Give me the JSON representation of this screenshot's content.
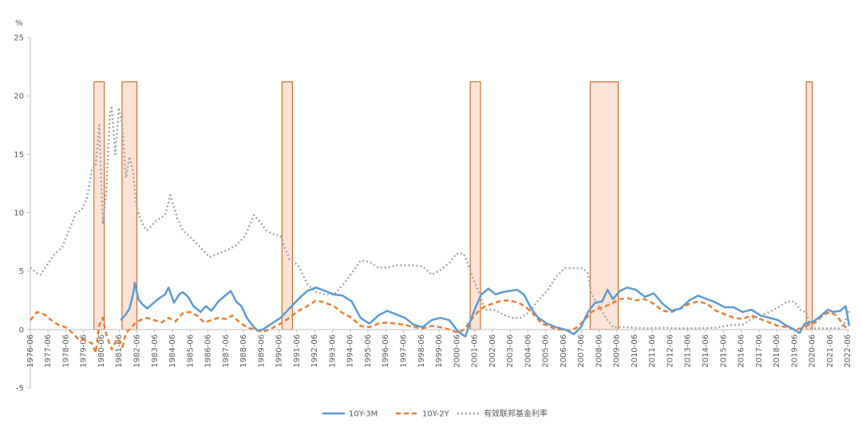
{
  "chart_data": {
    "type": "line",
    "ylabel": "%",
    "ylim": [
      -5,
      25
    ],
    "yticks": [
      "-5",
      "0",
      "5",
      "10",
      "15",
      "20",
      "25"
    ],
    "xlim": [
      1976.42,
      2022.5
    ],
    "x_tick_labels": [
      "1976-06",
      "1977-06",
      "1978-06",
      "1979-06",
      "1980-06",
      "1981-06",
      "1982-06",
      "1983-06",
      "1984-06",
      "1985-06",
      "1986-06",
      "1987-06",
      "1988-06",
      "1989-06",
      "1990-06",
      "1991-06",
      "1992-06",
      "1993-06",
      "1994-06",
      "1995-06",
      "1996-06",
      "1997-06",
      "1998-06",
      "1999-06",
      "2000-06",
      "2001-06",
      "2002-06",
      "2003-06",
      "2004-06",
      "2005-06",
      "2006-06",
      "2007-06",
      "2008-06",
      "2009-06",
      "2010-06",
      "2011-06",
      "2012-06",
      "2013-06",
      "2014-06",
      "2015-06",
      "2016-06",
      "2017-06",
      "2018-06",
      "2019-06",
      "2020-06",
      "2021-06",
      "2022-06"
    ],
    "recessions": [
      [
        1980.0,
        1980.58
      ],
      [
        1981.58,
        1982.42
      ],
      [
        1990.58,
        1991.17
      ],
      [
        2001.17,
        2001.75
      ],
      [
        2007.92,
        2009.5
      ],
      [
        2020.08,
        2020.42
      ]
    ],
    "recession_height": 21.2,
    "colors": {
      "s10y3m": "#5b9bd5",
      "s10y2y": "#ed7d31",
      "fed": "#a5a5a5",
      "recession_fill": "#fbe3d6",
      "recession_stroke": "#c55a11"
    },
    "legend": {
      "position": "bottom",
      "entries": [
        "10Y-3M",
        "10Y-2Y",
        "有效联邦基金利率"
      ]
    },
    "series": [
      {
        "name": "10Y-3M",
        "style": "solid",
        "x": [
          1981.5,
          1981.8,
          1982.0,
          1982.2,
          1982.3,
          1982.5,
          1982.7,
          1983.0,
          1983.3,
          1983.6,
          1984.0,
          1984.2,
          1984.5,
          1984.8,
          1985.0,
          1985.3,
          1985.6,
          1986.0,
          1986.3,
          1986.6,
          1987.0,
          1987.3,
          1987.7,
          1988.0,
          1988.3,
          1988.6,
          1989.0,
          1989.2,
          1989.5,
          1989.8,
          1990.0,
          1990.5,
          1991.0,
          1991.5,
          1992.0,
          1992.5,
          1993.0,
          1993.5,
          1994.0,
          1994.5,
          1995.0,
          1995.5,
          1996.0,
          1996.5,
          1997.0,
          1997.5,
          1998.0,
          1998.5,
          1999.0,
          1999.5,
          2000.0,
          2000.5,
          2000.9,
          2001.2,
          2001.5,
          2001.8,
          2002.2,
          2002.6,
          2003.0,
          2003.4,
          2003.8,
          2004.2,
          2004.6,
          2005.0,
          2005.5,
          2006.0,
          2006.5,
          2007.0,
          2007.4,
          2007.8,
          2008.2,
          2008.6,
          2008.9,
          2009.2,
          2009.6,
          2010.0,
          2010.5,
          2011.0,
          2011.5,
          2012.0,
          2012.5,
          2013.0,
          2013.5,
          2014.0,
          2014.5,
          2015.0,
          2015.5,
          2016.0,
          2016.5,
          2017.0,
          2017.5,
          2018.0,
          2018.5,
          2019.0,
          2019.4,
          2019.7,
          2020.0,
          2020.3,
          2020.6,
          2021.0,
          2021.3,
          2021.6,
          2022.0,
          2022.3,
          2022.5
        ],
        "y": [
          0.8,
          1.3,
          1.8,
          3.0,
          4.0,
          2.6,
          2.2,
          1.8,
          2.2,
          2.6,
          3.0,
          3.6,
          2.3,
          3.0,
          3.2,
          2.8,
          2.0,
          1.5,
          2.0,
          1.6,
          2.4,
          2.8,
          3.3,
          2.4,
          2.0,
          1.0,
          0.2,
          -0.1,
          0.0,
          0.3,
          0.5,
          1.0,
          1.8,
          2.6,
          3.3,
          3.6,
          3.3,
          3.0,
          2.9,
          2.4,
          1.0,
          0.5,
          1.2,
          1.6,
          1.3,
          1.0,
          0.4,
          0.2,
          0.8,
          1.0,
          0.8,
          -0.2,
          -0.6,
          0.8,
          2.0,
          3.0,
          3.5,
          3.0,
          3.2,
          3.3,
          3.4,
          3.0,
          1.8,
          1.0,
          0.5,
          0.2,
          0.0,
          -0.4,
          0.2,
          1.5,
          2.3,
          2.4,
          3.4,
          2.6,
          3.3,
          3.6,
          3.4,
          2.8,
          3.1,
          2.2,
          1.6,
          1.8,
          2.5,
          2.9,
          2.6,
          2.3,
          1.9,
          1.9,
          1.5,
          1.7,
          1.2,
          1.0,
          0.8,
          0.3,
          0.0,
          -0.3,
          0.5,
          0.6,
          0.8,
          1.3,
          1.7,
          1.5,
          1.6,
          2.0,
          0.3
        ]
      },
      {
        "name": "10Y-2Y",
        "style": "dashed",
        "x": [
          1976.42,
          1976.8,
          1977.2,
          1977.6,
          1978.0,
          1978.4,
          1978.8,
          1979.1,
          1979.5,
          1979.9,
          1980.1,
          1980.3,
          1980.5,
          1980.7,
          1981.0,
          1981.3,
          1981.6,
          1981.8,
          1982.0,
          1982.3,
          1982.6,
          1983.0,
          1983.4,
          1983.8,
          1984.2,
          1984.6,
          1985.0,
          1985.4,
          1985.8,
          1986.2,
          1986.6,
          1987.0,
          1987.4,
          1987.8,
          1988.2,
          1988.6,
          1989.0,
          1989.5,
          1990.0,
          1990.5,
          1991.0,
          1991.5,
          1992.0,
          1992.5,
          1993.0,
          1993.5,
          1994.0,
          1994.5,
          1995.0,
          1995.5,
          1996.0,
          1996.5,
          1997.0,
          1997.5,
          1998.0,
          1998.5,
          1999.0,
          1999.5,
          2000.0,
          2000.5,
          2000.9,
          2001.2,
          2001.6,
          2002.0,
          2002.4,
          2002.8,
          2003.2,
          2003.6,
          2004.0,
          2004.4,
          2004.8,
          2005.2,
          2005.6,
          2006.0,
          2006.4,
          2006.8,
          2007.2,
          2007.6,
          2008.0,
          2008.4,
          2008.8,
          2009.2,
          2009.6,
          2010.0,
          2010.5,
          2011.0,
          2011.5,
          2012.0,
          2012.5,
          2013.0,
          2013.5,
          2014.0,
          2014.5,
          2015.0,
          2015.5,
          2016.0,
          2016.5,
          2017.0,
          2017.5,
          2018.0,
          2018.5,
          2019.0,
          2019.4,
          2019.8,
          2020.2,
          2020.6,
          2021.0,
          2021.4,
          2021.8,
          2022.1,
          2022.4
        ],
        "y": [
          0.8,
          1.5,
          1.3,
          0.8,
          0.4,
          0.2,
          -0.3,
          -0.8,
          -0.9,
          -1.2,
          -2.0,
          0.4,
          1.0,
          -0.5,
          -1.7,
          -0.8,
          -1.5,
          -0.3,
          0.0,
          0.5,
          0.8,
          1.0,
          0.8,
          0.6,
          1.0,
          0.7,
          1.4,
          1.5,
          1.2,
          0.6,
          0.8,
          1.0,
          0.9,
          1.2,
          0.6,
          0.2,
          0.0,
          -0.2,
          0.1,
          0.5,
          1.0,
          1.6,
          2.0,
          2.5,
          2.3,
          2.0,
          1.4,
          1.0,
          0.3,
          0.2,
          0.5,
          0.6,
          0.5,
          0.4,
          0.2,
          0.1,
          0.3,
          0.2,
          0.0,
          -0.3,
          0.1,
          0.8,
          1.5,
          2.0,
          2.2,
          2.4,
          2.5,
          2.4,
          2.2,
          1.8,
          1.2,
          0.5,
          0.3,
          0.0,
          0.0,
          -0.1,
          0.2,
          0.8,
          1.5,
          1.8,
          2.0,
          2.3,
          2.6,
          2.7,
          2.5,
          2.6,
          2.2,
          1.6,
          1.5,
          1.8,
          2.2,
          2.4,
          2.2,
          1.6,
          1.3,
          1.0,
          0.9,
          1.2,
          0.9,
          0.6,
          0.3,
          0.2,
          0.0,
          0.1,
          0.4,
          0.6,
          1.2,
          1.5,
          1.2,
          0.5,
          0.0
        ]
      },
      {
        "name": "有效联邦基金利率",
        "style": "dotted",
        "x": [
          1976.42,
          1976.8,
          1977.0,
          1977.4,
          1977.8,
          1978.2,
          1978.6,
          1979.0,
          1979.3,
          1979.6,
          1979.9,
          1980.1,
          1980.3,
          1980.5,
          1980.7,
          1980.9,
          1981.0,
          1981.2,
          1981.4,
          1981.6,
          1981.8,
          1982.0,
          1982.2,
          1982.4,
          1982.6,
          1982.8,
          1983.0,
          1983.5,
          1984.0,
          1984.3,
          1984.7,
          1985.0,
          1985.5,
          1986.0,
          1986.5,
          1987.0,
          1987.5,
          1988.0,
          1988.5,
          1989.0,
          1989.3,
          1989.7,
          1990.0,
          1990.5,
          1991.0,
          1991.5,
          1992.0,
          1992.5,
          1993.0,
          1993.5,
          1994.0,
          1994.5,
          1995.0,
          1995.5,
          1996.0,
          1996.5,
          1997.0,
          1997.5,
          1998.0,
          1998.5,
          1999.0,
          1999.5,
          2000.0,
          2000.4,
          2000.8,
          2001.0,
          2001.3,
          2001.7,
          2002.0,
          2002.5,
          2003.0,
          2003.5,
          2004.0,
          2004.5,
          2005.0,
          2005.5,
          2006.0,
          2006.5,
          2007.0,
          2007.5,
          2007.8,
          2008.0,
          2008.4,
          2008.8,
          2009.2,
          2010.0,
          2011.0,
          2012.0,
          2013.0,
          2014.0,
          2015.0,
          2015.9,
          2016.5,
          2017.0,
          2017.5,
          2018.0,
          2018.5,
          2019.0,
          2019.4,
          2019.8,
          2020.1,
          2020.3,
          2021.0,
          2021.5,
          2021.9,
          2022.2,
          2022.5
        ],
        "y": [
          5.3,
          4.8,
          4.7,
          5.6,
          6.5,
          7.0,
          8.5,
          10.0,
          10.2,
          11.2,
          13.8,
          14.0,
          17.5,
          9.0,
          12.0,
          18.5,
          19.0,
          15.0,
          19.0,
          17.5,
          13.0,
          14.8,
          13.5,
          10.5,
          9.5,
          8.8,
          8.5,
          9.3,
          9.8,
          11.5,
          9.5,
          8.5,
          7.8,
          7.0,
          6.2,
          6.5,
          6.8,
          7.2,
          8.0,
          9.8,
          9.3,
          8.5,
          8.2,
          8.0,
          6.0,
          5.5,
          3.9,
          3.2,
          3.0,
          3.0,
          3.8,
          4.8,
          5.9,
          5.8,
          5.3,
          5.3,
          5.5,
          5.5,
          5.5,
          5.4,
          4.7,
          5.1,
          5.7,
          6.5,
          6.5,
          5.8,
          4.5,
          3.0,
          1.7,
          1.7,
          1.3,
          1.0,
          1.0,
          1.5,
          2.5,
          3.3,
          4.5,
          5.25,
          5.25,
          5.25,
          4.8,
          3.0,
          2.0,
          1.0,
          0.2,
          0.2,
          0.1,
          0.15,
          0.1,
          0.1,
          0.15,
          0.4,
          0.4,
          0.9,
          1.2,
          1.5,
          1.9,
          2.4,
          2.4,
          1.6,
          1.5,
          0.1,
          0.1,
          0.1,
          0.1,
          0.4,
          1.6
        ]
      }
    ]
  }
}
